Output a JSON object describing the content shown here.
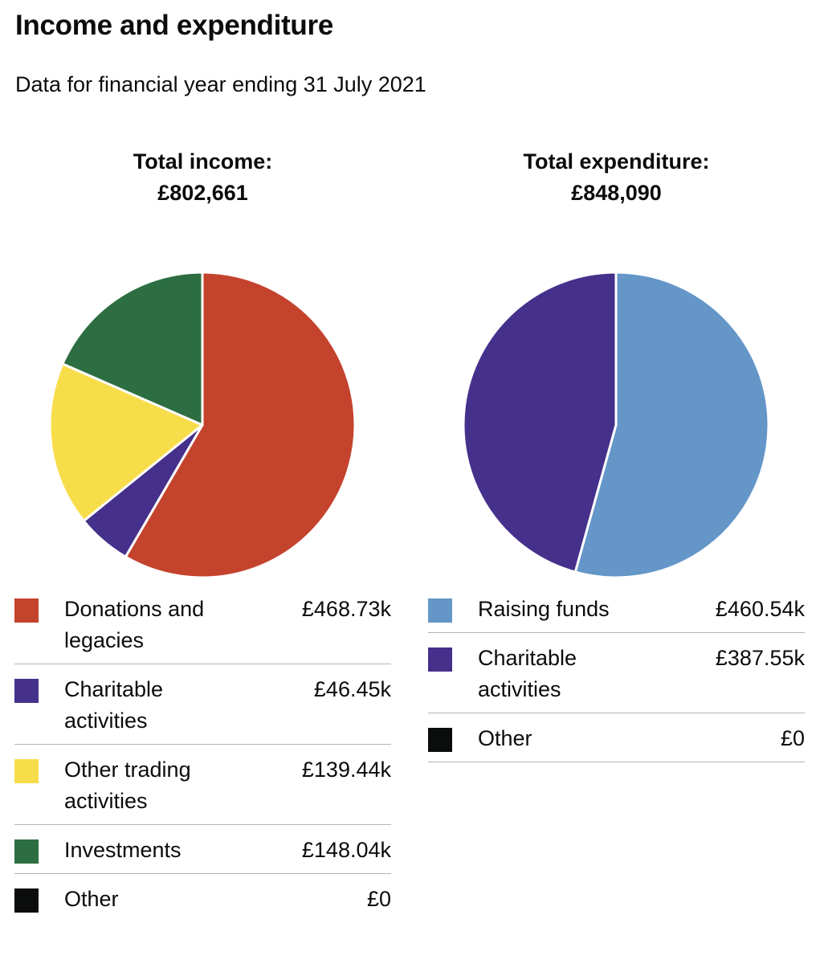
{
  "title": "Income and expenditure",
  "subtitle": "Data for financial year ending 31 July 2021",
  "income": {
    "heading": "Total income:",
    "total": "£802,661",
    "items": [
      {
        "label": "Donations and legacies",
        "value_text": "£468.73k",
        "color": "#c4432d"
      },
      {
        "label": "Charitable activities",
        "value_text": "£46.45k",
        "color": "#45308b"
      },
      {
        "label": "Other trading activities",
        "value_text": "£139.44k",
        "color": "#f8dd4b"
      },
      {
        "label": "Investments",
        "value_text": "£148.04k",
        "color": "#2c6e41"
      },
      {
        "label": "Other",
        "value_text": "£0",
        "color": "#0b0c0c"
      }
    ]
  },
  "expenditure": {
    "heading": "Total expenditure:",
    "total": "£848,090",
    "items": [
      {
        "label": "Raising funds",
        "value_text": "£460.54k",
        "color": "#6496c8"
      },
      {
        "label": "Charitable activities",
        "value_text": "£387.55k",
        "color": "#45308b"
      },
      {
        "label": "Other",
        "value_text": "£0",
        "color": "#0b0c0c"
      }
    ]
  },
  "chart_data": [
    {
      "type": "pie",
      "title": "Total income: £802,661",
      "categories": [
        "Donations and legacies",
        "Charitable activities",
        "Other trading activities",
        "Investments",
        "Other"
      ],
      "values": [
        468.73,
        46.45,
        139.44,
        148.04,
        0
      ],
      "unit": "£k",
      "colors": [
        "#c4432d",
        "#45308b",
        "#f8dd4b",
        "#2c6e41",
        "#0b0c0c"
      ]
    },
    {
      "type": "pie",
      "title": "Total expenditure: £848,090",
      "categories": [
        "Raising funds",
        "Charitable activities",
        "Other"
      ],
      "values": [
        460.54,
        387.55,
        0
      ],
      "unit": "£k",
      "colors": [
        "#6496c8",
        "#45308b",
        "#0b0c0c"
      ]
    }
  ]
}
